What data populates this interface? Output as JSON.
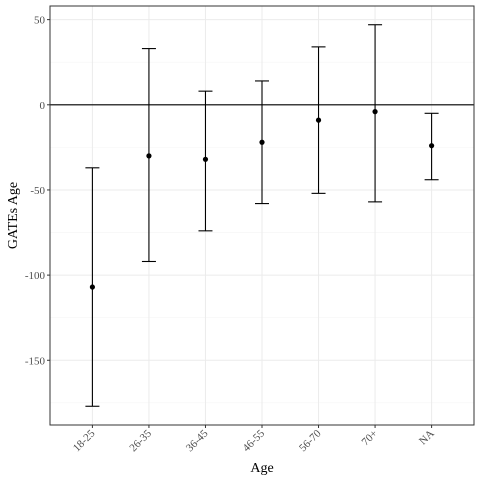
{
  "chart_data": {
    "type": "errorbar",
    "title": "",
    "xlabel": "Age",
    "ylabel": "GATEs Age",
    "categories": [
      "18-25",
      "26-35",
      "36-45",
      "46-55",
      "56-70",
      "70+",
      "NA"
    ],
    "series": [
      {
        "values": [
          -107,
          -30,
          -32,
          -22,
          -9,
          -4,
          -24
        ],
        "lower": [
          -177,
          -92,
          -74,
          -58,
          -52,
          -57,
          -44
        ],
        "upper": [
          -37,
          33,
          8,
          14,
          34,
          47,
          -5
        ]
      }
    ],
    "ylim": [
      -188,
      58
    ],
    "yticks": [
      50,
      0,
      -50,
      -100,
      -150
    ],
    "reference_line": 0,
    "grid": true,
    "theme": "bw",
    "colors": {
      "mark": "#000000",
      "grid_major": "#ebebeb",
      "grid_minor": "#f5f5f5",
      "panel_border": "#333333",
      "tick_text": "#4d4d4d"
    }
  }
}
